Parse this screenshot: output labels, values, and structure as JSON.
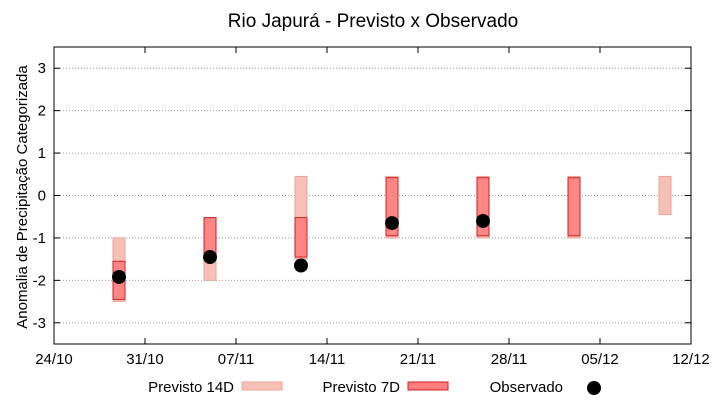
{
  "chart_data": {
    "type": "range-bar",
    "title": "Rio Japurá - Previsto x Observado",
    "ylabel": "Anomalia de Precipitação Categorizada",
    "xlabel": "",
    "x_ticks": [
      "24/10",
      "31/10",
      "07/11",
      "14/11",
      "21/11",
      "28/11",
      "05/12",
      "12/12"
    ],
    "x_range": [
      "24/10",
      "12/12"
    ],
    "y_ticks": [
      "-3",
      "-2",
      "-1",
      "0",
      "1",
      "2",
      "3"
    ],
    "ylim": [
      -3.5,
      3.5
    ],
    "grid": "horizontal dotted",
    "legend_position": "bottom",
    "categories": [
      "29/10",
      "05/11",
      "12/11",
      "19/11",
      "26/11",
      "03/12",
      "10/12"
    ],
    "series": [
      {
        "name": "Previsto 14D",
        "color": "#f7c0b7",
        "ranges": [
          [
            -2.5,
            -1.0
          ],
          [
            -2.0,
            -0.55
          ],
          [
            -1.5,
            0.45
          ],
          [
            -1.0,
            0.45
          ],
          [
            -1.0,
            0.45
          ],
          [
            -1.0,
            0.45
          ],
          [
            -0.45,
            0.45
          ]
        ]
      },
      {
        "name": "Previsto 7D",
        "color": "#ff7d7d",
        "ranges": [
          [
            -2.45,
            -1.55
          ],
          [
            -1.45,
            -0.52
          ],
          [
            -1.45,
            -0.52
          ],
          [
            -0.95,
            0.42
          ],
          [
            -0.95,
            0.42
          ],
          [
            -0.95,
            0.42
          ],
          null
        ]
      },
      {
        "name": "Observado",
        "color": "#000000",
        "values": [
          -1.92,
          -1.45,
          -1.65,
          -0.65,
          -0.6,
          null,
          null
        ]
      }
    ]
  }
}
